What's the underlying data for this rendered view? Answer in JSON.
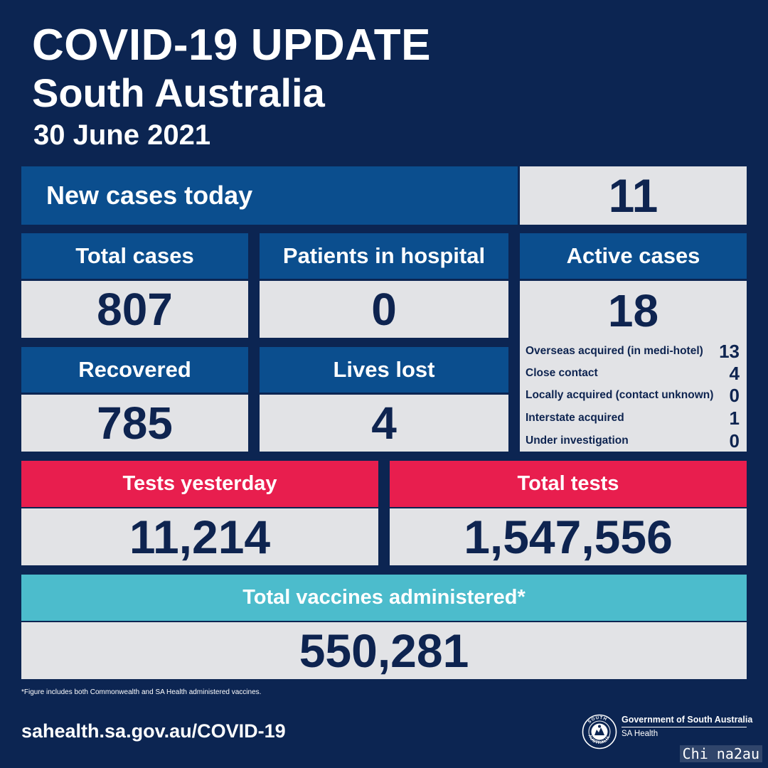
{
  "header": {
    "title": "COVID-19 UPDATE",
    "subtitle": "South Australia",
    "date": "30 June 2021"
  },
  "new_cases": {
    "label": "New cases today",
    "value": "11"
  },
  "total_cases": {
    "label": "Total cases",
    "value": "807"
  },
  "patients_in_hospital": {
    "label": "Patients in hospital",
    "value": "0"
  },
  "active_cases": {
    "label": "Active cases",
    "value": "18",
    "breakdown": [
      {
        "label": "Overseas acquired (in medi-hotel)",
        "value": "13"
      },
      {
        "label": "Close contact",
        "value": "4"
      },
      {
        "label": "Locally acquired (contact unknown)",
        "value": "0"
      },
      {
        "label": "Interstate acquired",
        "value": "1"
      },
      {
        "label": "Under investigation",
        "value": "0"
      }
    ]
  },
  "recovered": {
    "label": "Recovered",
    "value": "785"
  },
  "lives_lost": {
    "label": "Lives lost",
    "value": "4"
  },
  "tests_yesterday": {
    "label": "Tests yesterday",
    "value": "11,214"
  },
  "total_tests": {
    "label": "Total tests",
    "value": "1,547,556"
  },
  "vaccines": {
    "label": "Total vaccines administered*",
    "value": "550,281"
  },
  "footnote": "*Figure includes both Commonwealth and SA Health administered vaccines.",
  "website": "sahealth.sa.gov.au/COVID-19",
  "government": {
    "name": "Government of South Australia",
    "department": "SA Health",
    "seal_text": "SOUTH AUSTRALIA"
  },
  "watermark": "Chi na2au",
  "colors": {
    "background": "#0c2552",
    "header_blue": "#0b4e8e",
    "header_red": "#e81e4e",
    "header_teal": "#4cbccc",
    "value_box": "#e2e3e6",
    "value_text": "#0e2450"
  }
}
